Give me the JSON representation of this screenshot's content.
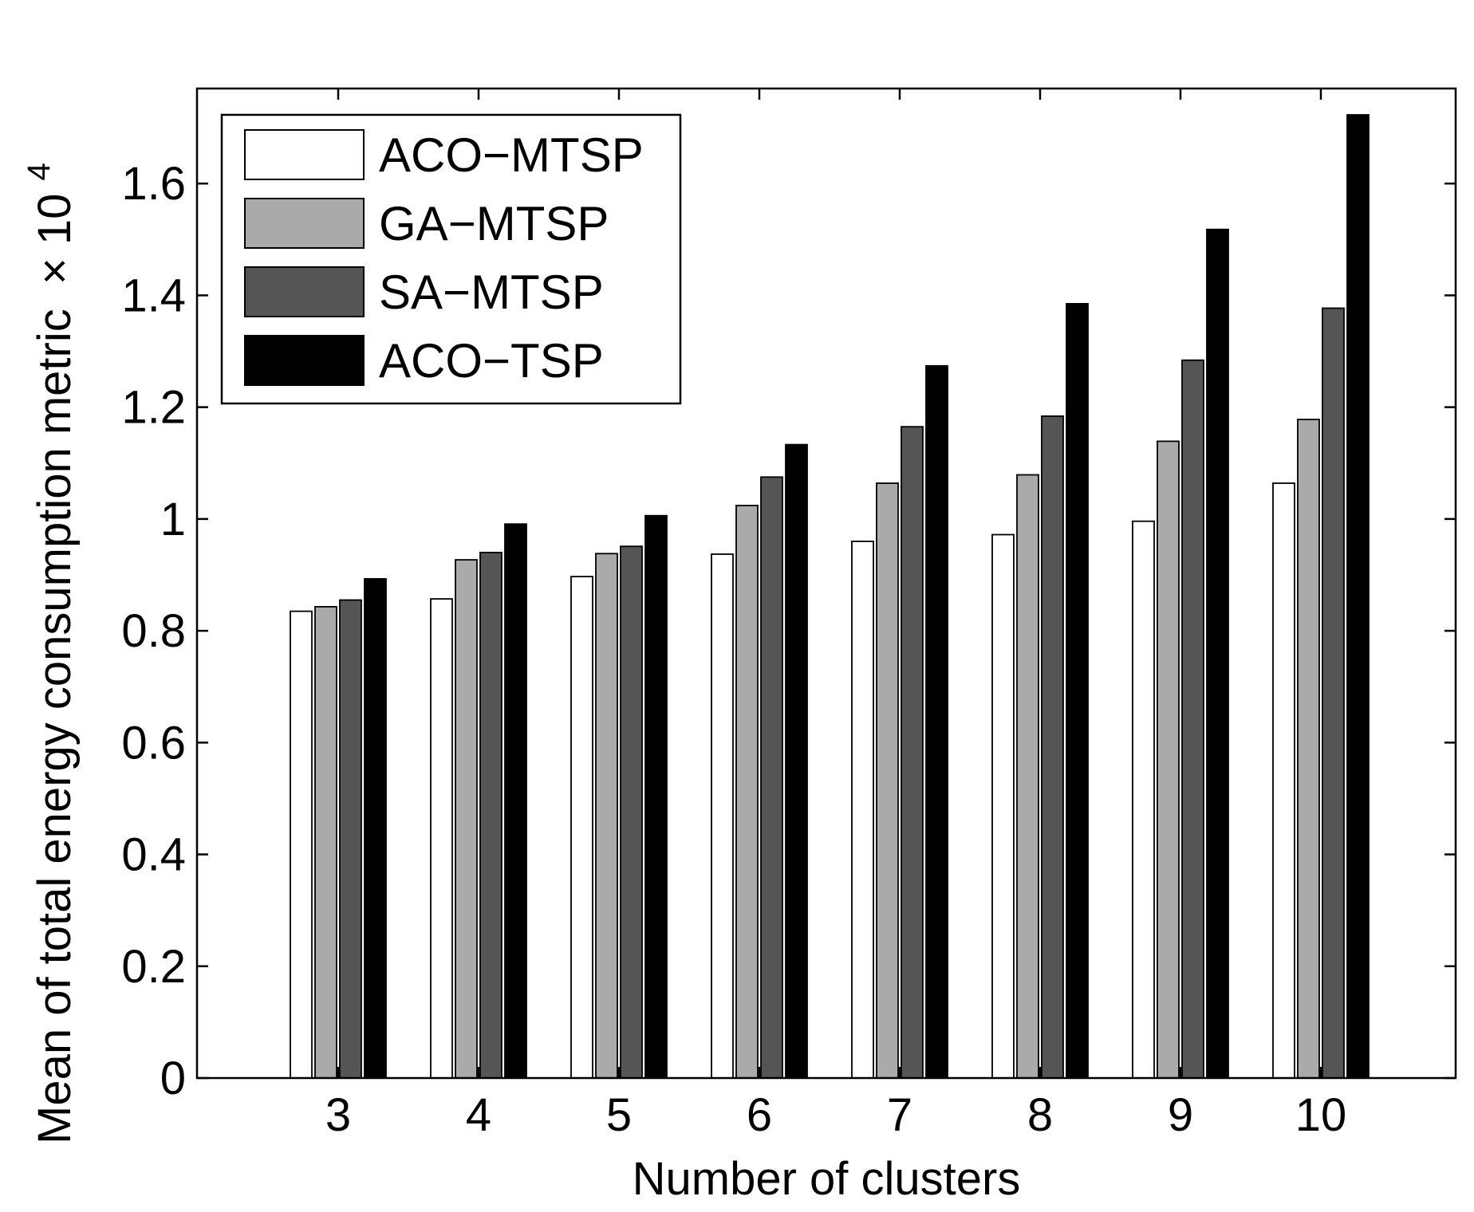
{
  "chart_data": {
    "type": "bar",
    "xlabel": "Number of clusters",
    "ylabel": "Mean of total energy consumption metric",
    "ylabel_multiplier": "× 10",
    "ylabel_exponent": "4",
    "categories": [
      "3",
      "4",
      "5",
      "6",
      "7",
      "8",
      "9",
      "10"
    ],
    "ylim": [
      0,
      1.77
    ],
    "yticks": [
      0,
      0.2,
      0.4,
      0.6,
      0.8,
      1,
      1.2,
      1.4,
      1.6
    ],
    "ytick_labels": [
      "0",
      "0.2",
      "0.4",
      "0.6",
      "0.8",
      "1",
      "1.2",
      "1.4",
      "1.6"
    ],
    "grid": false,
    "legend_position": "top-left",
    "series": [
      {
        "name": "ACO−MTSP",
        "color": "#ffffff",
        "values": [
          0.835,
          0.857,
          0.897,
          0.937,
          0.96,
          0.972,
          0.996,
          1.064
        ]
      },
      {
        "name": "GA−MTSP",
        "color": "#aaaaaa",
        "values": [
          0.843,
          0.927,
          0.938,
          1.024,
          1.064,
          1.079,
          1.139,
          1.178
        ]
      },
      {
        "name": "SA−MTSP",
        "color": "#555555",
        "values": [
          0.855,
          0.94,
          0.951,
          1.075,
          1.165,
          1.184,
          1.284,
          1.377
        ]
      },
      {
        "name": "ACO−TSP",
        "color": "#000000",
        "values": [
          0.893,
          0.991,
          1.006,
          1.133,
          1.274,
          1.385,
          1.518,
          1.723
        ]
      }
    ]
  }
}
